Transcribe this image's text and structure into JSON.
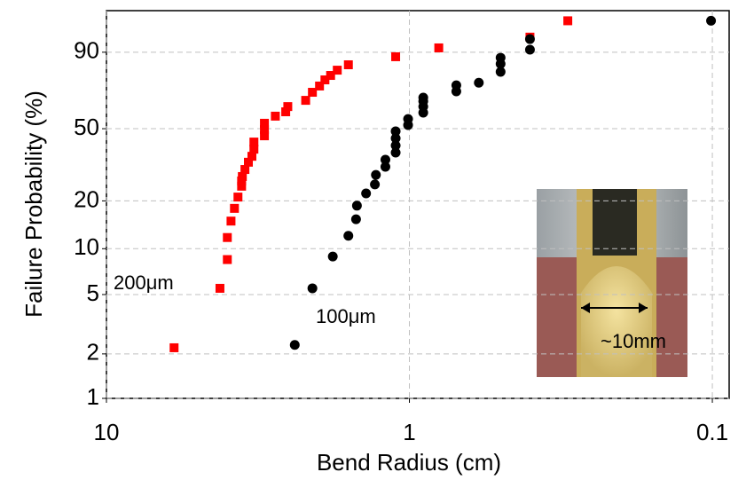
{
  "chart_data": {
    "type": "scatter",
    "xlabel": "Bend Radius (cm)",
    "ylabel": "Failure Probability (%)",
    "xscale": "log",
    "yscale": "weibull",
    "xlim": [
      10,
      0.088
    ],
    "ylim": [
      1,
      98.8
    ],
    "xticks": [
      10,
      1,
      0.1
    ],
    "yticks": [
      1,
      2,
      5,
      10,
      20,
      50,
      90
    ],
    "grid": true,
    "annotations": [
      "200μm",
      "100μm",
      "~10mm"
    ],
    "series": [
      {
        "name": "200μm",
        "color": "#ff0000",
        "marker": "square",
        "x": [
          5.98,
          4.22,
          3.99,
          3.99,
          3.88,
          3.78,
          3.68,
          3.58,
          3.58,
          3.56,
          3.49,
          3.4,
          3.31,
          3.26,
          3.26,
          3.01,
          3.01,
          3.01,
          2.77,
          2.56,
          2.52,
          2.2,
          2.09,
          1.98,
          1.9,
          1.82,
          1.73,
          1.59,
          1.11,
          0.8,
          0.4,
          0.3
        ],
        "values": [
          2.2,
          5.5,
          8.5,
          11.8,
          15.0,
          18.0,
          21.1,
          24.5,
          26.3,
          27.9,
          30.6,
          33.6,
          36.2,
          39.5,
          43.0,
          46.2,
          49.5,
          53.0,
          57.0,
          59.5,
          62.5,
          66.1,
          70.7,
          74.2,
          77.5,
          79.8,
          82.4,
          84.9,
          88.3,
          91.5,
          94.6,
          97.7
        ]
      },
      {
        "name": "100μm",
        "color": "#000000",
        "marker": "circle",
        "x": [
          2.39,
          2.09,
          1.79,
          1.59,
          1.5,
          1.49,
          1.39,
          1.3,
          1.29,
          1.2,
          1.2,
          1.11,
          1.11,
          1.11,
          1.11,
          1.01,
          1.01,
          0.9,
          0.9,
          0.9,
          0.9,
          0.7,
          0.7,
          0.59,
          0.5,
          0.5,
          0.5,
          0.4,
          0.4,
          0.101
        ],
        "values": [
          2.3,
          5.5,
          8.9,
          12.1,
          15.4,
          18.7,
          22.2,
          25.1,
          28.5,
          31.7,
          34.7,
          37.9,
          41.3,
          44.9,
          48.6,
          52.0,
          55.4,
          59.0,
          62.5,
          65.6,
          67.7,
          71.2,
          74.6,
          76.0,
          81.6,
          85.3,
          87.9,
          90.9,
          94.1,
          97.7
        ]
      }
    ]
  }
}
